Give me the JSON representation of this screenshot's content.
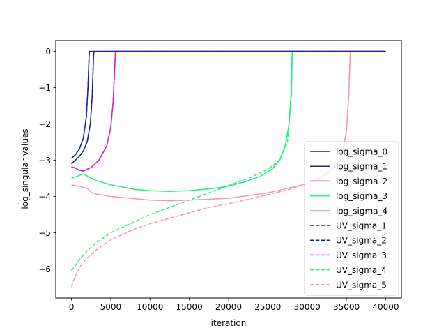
{
  "chart_data": {
    "type": "line",
    "title": "",
    "xlabel": "iteration",
    "ylabel": "log_singular values",
    "xlim": [
      -2000,
      42000
    ],
    "ylim": [
      -6.8,
      0.3
    ],
    "xticks": [
      0,
      5000,
      10000,
      15000,
      20000,
      25000,
      30000,
      35000,
      40000
    ],
    "yticks": [
      0,
      -1,
      -2,
      -3,
      -4,
      -5,
      -6
    ],
    "grid": false,
    "legend_position": "lower right",
    "series": [
      {
        "name": "log_sigma_0",
        "color": "#1f1fa8",
        "dash": "solid",
        "x": [
          0,
          500,
          1000,
          1500,
          1900,
          2100,
          2250,
          2300,
          40000
        ],
        "y": [
          -2.95,
          -2.85,
          -2.7,
          -2.4,
          -1.8,
          -1.0,
          -0.1,
          0,
          0
        ]
      },
      {
        "name": "log_sigma_1",
        "color": "#1a2a5c",
        "dash": "solid",
        "x": [
          0,
          500,
          1000,
          1500,
          2000,
          2400,
          2650,
          2800,
          2850,
          40000
        ],
        "y": [
          -3.1,
          -3.0,
          -2.9,
          -2.75,
          -2.5,
          -2.0,
          -1.2,
          -0.2,
          0,
          0
        ]
      },
      {
        "name": "log_sigma_2",
        "color": "#cc22cc",
        "dash": "solid",
        "x": [
          0,
          500,
          1000,
          1500,
          2500,
          3500,
          4500,
          5000,
          5300,
          5500,
          5600,
          40000
        ],
        "y": [
          -3.18,
          -3.22,
          -3.28,
          -3.3,
          -3.2,
          -3.0,
          -2.6,
          -2.1,
          -1.4,
          -0.5,
          0,
          0
        ]
      },
      {
        "name": "log_sigma_3",
        "color": "#22ee77",
        "dash": "solid",
        "x": [
          0,
          1500,
          3000,
          5000,
          8000,
          10000,
          12500,
          15000,
          18000,
          20000,
          22000,
          24000,
          25500,
          26500,
          27200,
          27700,
          28000,
          28100,
          40000
        ],
        "y": [
          -3.5,
          -3.38,
          -3.55,
          -3.68,
          -3.8,
          -3.84,
          -3.86,
          -3.84,
          -3.78,
          -3.72,
          -3.6,
          -3.45,
          -3.25,
          -3.0,
          -2.6,
          -2.0,
          -1.0,
          0,
          0
        ]
      },
      {
        "name": "log_sigma_4",
        "color": "#f497b6",
        "dash": "solid",
        "x": [
          0,
          1000,
          2000,
          2500,
          3000,
          5000,
          8000,
          10000,
          12500,
          15000,
          20000,
          25000,
          30000,
          32000,
          33500,
          34500,
          35000,
          35300,
          35500,
          40000
        ],
        "y": [
          -3.68,
          -3.72,
          -3.78,
          -3.88,
          -3.93,
          -4.0,
          -4.06,
          -4.1,
          -4.12,
          -4.1,
          -4.05,
          -3.9,
          -3.65,
          -3.45,
          -3.2,
          -2.8,
          -2.2,
          -1.2,
          0,
          0
        ]
      },
      {
        "name": "UV_sigma_1",
        "color": "#1f1fa8",
        "dash": "dashed",
        "x": [
          0,
          500,
          1000,
          1500,
          1900,
          2100,
          2250,
          2300,
          40000
        ],
        "y": [
          -2.95,
          -2.85,
          -2.7,
          -2.4,
          -1.8,
          -1.0,
          -0.1,
          0,
          0
        ]
      },
      {
        "name": "UV_sigma_2",
        "color": "#1a2a5c",
        "dash": "dashed",
        "x": [
          0,
          500,
          1000,
          1500,
          2000,
          2400,
          2650,
          2800,
          2850,
          40000
        ],
        "y": [
          -3.1,
          -3.0,
          -2.9,
          -2.75,
          -2.5,
          -2.0,
          -1.2,
          -0.2,
          0,
          0
        ]
      },
      {
        "name": "UV_sigma_3",
        "color": "#cc22cc",
        "dash": "dashed",
        "x": [
          0,
          500,
          1000,
          1500,
          2500,
          3500,
          4500,
          5000,
          5300,
          5500,
          5600,
          40000
        ],
        "y": [
          -3.18,
          -3.22,
          -3.28,
          -3.3,
          -3.2,
          -3.0,
          -2.6,
          -2.1,
          -1.4,
          -0.5,
          0,
          0
        ]
      },
      {
        "name": "UV_sigma_4",
        "color": "#22ee77",
        "dash": "dashed",
        "x": [
          0,
          500,
          1000,
          2000,
          3000,
          4000,
          5000,
          6500,
          8000,
          10000,
          12500,
          15000,
          17500,
          20000,
          22500,
          25000,
          26500,
          27500,
          28000,
          28100,
          40000
        ],
        "y": [
          -6.05,
          -5.9,
          -5.75,
          -5.5,
          -5.3,
          -5.15,
          -5.0,
          -4.85,
          -4.7,
          -4.5,
          -4.3,
          -4.1,
          -3.9,
          -3.7,
          -3.5,
          -3.25,
          -3.0,
          -2.5,
          -1.2,
          0,
          0
        ]
      },
      {
        "name": "UV_sigma_5",
        "color": "#f497b6",
        "dash": "dashed",
        "x": [
          0,
          300,
          700,
          1200,
          2000,
          3000,
          4000,
          5000,
          6500,
          8000,
          10000,
          12500,
          15000,
          17500,
          20000,
          22500,
          25000,
          27500,
          30000,
          32000,
          33500,
          34500,
          35000,
          35300,
          35500,
          40000
        ],
        "y": [
          -6.5,
          -6.3,
          -6.1,
          -5.9,
          -5.7,
          -5.5,
          -5.35,
          -5.2,
          -5.05,
          -4.9,
          -4.75,
          -4.6,
          -4.45,
          -4.3,
          -4.2,
          -4.08,
          -3.95,
          -3.82,
          -3.65,
          -3.45,
          -3.2,
          -2.8,
          -2.2,
          -1.2,
          0,
          0
        ]
      }
    ]
  }
}
